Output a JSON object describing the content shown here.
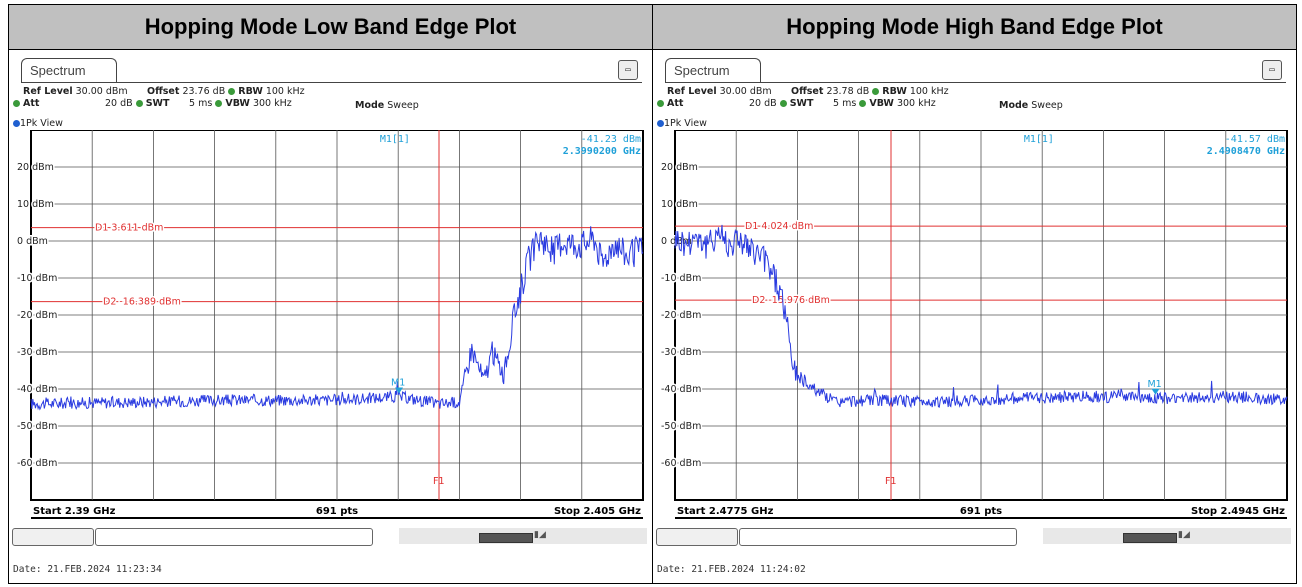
{
  "plots": [
    {
      "title": "Hopping Mode Low Band Edge Plot",
      "tab_label": "Spectrum",
      "settings": {
        "ref_level_label": "Ref Level",
        "ref_level": "30.00 dBm",
        "offset_label": "Offset",
        "offset": "23.76 dB",
        "rbw_label": "RBW",
        "rbw": "100 kHz",
        "att_label": "Att",
        "att": "20 dB",
        "swt_label": "SWT",
        "swt": "5 ms",
        "vbw_label": "VBW",
        "vbw": "300 kHz",
        "mode_label": "Mode",
        "mode": "Sweep"
      },
      "view_label": "1Pk View",
      "marker_label": "M1[1]",
      "marker_value": "-41.23 dBm",
      "marker_freq": "2.3990200 GHz",
      "start_label": "Start 2.39 GHz",
      "pts_label": "691 pts",
      "stop_label": "Stop 2.405 GHz",
      "date": "Date: 21.FEB.2024  11:23:34",
      "chart_data": {
        "type": "line",
        "x_unit": "GHz",
        "xlim": [
          2.39,
          2.405
        ],
        "ylim": [
          -70,
          30
        ],
        "y_ticks": [
          "20 dBm",
          "10 dBm",
          "0 dBm",
          "-10 dBm",
          "-20 dBm",
          "-30 dBm",
          "-40 dBm",
          "-50 dBm",
          "-60 dBm"
        ],
        "y_tick_values": [
          20,
          10,
          0,
          -10,
          -20,
          -30,
          -40,
          -50,
          -60
        ],
        "lines": [
          {
            "name": "D1",
            "label": "D1  3.611 dBm",
            "y": 3.611
          },
          {
            "name": "D2",
            "label": "D2  -16.389 dBm",
            "y": -16.389
          }
        ],
        "f1": {
          "label": "F1",
          "x": 2.4
        },
        "marker": {
          "label": "M1",
          "x": 2.39902,
          "y": -41.23
        },
        "x": [
          2.39,
          2.3925,
          2.395,
          2.3975,
          2.399,
          2.3995,
          2.4,
          2.4005,
          2.4008,
          2.4011,
          2.4013,
          2.4016,
          2.4019,
          2.4022,
          2.4025,
          2.4028,
          2.403,
          2.4035,
          2.4038,
          2.404,
          2.4043,
          2.4046,
          2.405
        ],
        "y": [
          -44,
          -43.5,
          -43,
          -43,
          -42,
          -43,
          -44,
          -43.5,
          -29,
          -38,
          -30,
          -36,
          -17,
          -5,
          1,
          -3,
          0,
          -1,
          1,
          -6,
          0,
          -4,
          -2
        ]
      }
    },
    {
      "title": "Hopping Mode High Band Edge Plot",
      "tab_label": "Spectrum",
      "settings": {
        "ref_level_label": "Ref Level",
        "ref_level": "30.00 dBm",
        "offset_label": "Offset",
        "offset": "23.78 dB",
        "rbw_label": "RBW",
        "rbw": "100 kHz",
        "att_label": "Att",
        "att": "20 dB",
        "swt_label": "SWT",
        "swt": "5 ms",
        "vbw_label": "VBW",
        "vbw": "300 kHz",
        "mode_label": "Mode",
        "mode": "Sweep"
      },
      "view_label": "1Pk View",
      "marker_label": "M1[1]",
      "marker_value": "-41.57 dBm",
      "marker_freq": "2.4908470 GHz",
      "start_label": "Start 2.4775 GHz",
      "pts_label": "691 pts",
      "stop_label": "Stop 2.4945 GHz",
      "date": "Date: 21.FEB.2024  11:24:02",
      "chart_data": {
        "type": "line",
        "x_unit": "GHz",
        "xlim": [
          2.4775,
          2.4945
        ],
        "ylim": [
          -70,
          30
        ],
        "y_ticks": [
          "20 dBm",
          "10 dBm",
          "0 dBm",
          "-10 dBm",
          "-20 dBm",
          "-30 dBm",
          "-40 dBm",
          "-50 dBm",
          "-60 dBm"
        ],
        "y_tick_values": [
          20,
          10,
          0,
          -10,
          -20,
          -30,
          -40,
          -50,
          -60
        ],
        "lines": [
          {
            "name": "D1",
            "label": "D1  4.024 dBm",
            "y": 4.024
          },
          {
            "name": "D2",
            "label": "D2  -15.976 dBm",
            "y": -15.976
          }
        ],
        "f1": {
          "label": "F1",
          "x": 2.4835
        },
        "marker": {
          "label": "M1",
          "x": 2.490847,
          "y": -41.57
        },
        "x": [
          2.4775,
          2.4778,
          2.4781,
          2.4784,
          2.4787,
          2.479,
          2.4793,
          2.4796,
          2.4799,
          2.4802,
          2.4805,
          2.4808,
          2.4811,
          2.4814,
          2.4817,
          2.482,
          2.483,
          2.485,
          2.487,
          2.489,
          2.491,
          2.493,
          2.4945
        ],
        "y": [
          1,
          -1,
          2,
          -2,
          3,
          -1,
          1,
          -3,
          -4,
          -8,
          -16,
          -35,
          -38,
          -40,
          -42,
          -43.5,
          -43,
          -43.5,
          -42.5,
          -42,
          -42.5,
          -42,
          -43
        ]
      }
    }
  ]
}
